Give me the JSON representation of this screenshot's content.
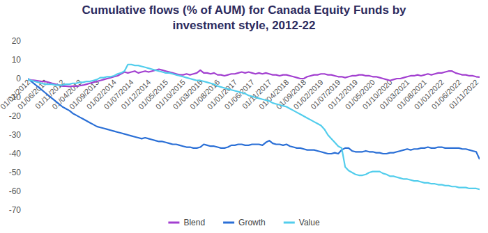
{
  "chart_data": {
    "type": "line",
    "title": "Cumulative flows (% of AUM) for Canada Equity Funds by investment style, 2012-22",
    "categories": [
      "01/01/2012",
      null,
      null,
      null,
      null,
      "01/06/2012",
      null,
      null,
      null,
      null,
      "01/11/2012",
      null,
      null,
      null,
      null,
      "01/04/2013",
      null,
      null,
      null,
      null,
      "01/09/2013",
      null,
      null,
      null,
      null,
      "01/02/2014",
      null,
      null,
      null,
      null,
      "01/07/2014",
      null,
      null,
      null,
      null,
      "01/12/2014",
      null,
      null,
      null,
      null,
      "01/05/2015",
      null,
      null,
      null,
      null,
      "01/10/2015",
      null,
      null,
      null,
      null,
      "01/03/2016",
      null,
      null,
      null,
      null,
      "01/08/2016",
      null,
      null,
      null,
      null,
      "01/01/2017",
      null,
      null,
      null,
      null,
      "01/06/2017",
      null,
      null,
      null,
      null,
      "01/11/2017",
      null,
      null,
      null,
      null,
      "01/04/2018",
      null,
      null,
      null,
      null,
      "01/09/2018",
      null,
      null,
      null,
      null,
      "01/02/2019",
      null,
      null,
      null,
      null,
      "01/07/2019",
      null,
      null,
      null,
      null,
      "01/12/2019",
      null,
      null,
      null,
      null,
      "01/05/2020",
      null,
      null,
      null,
      null,
      "01/10/2020",
      null,
      null,
      null,
      null,
      "01/03/2021",
      null,
      null,
      null,
      null,
      "01/08/2021",
      null,
      null,
      null,
      null,
      "01/01/2022",
      null,
      null,
      null,
      null,
      "01/06/2022",
      null,
      null,
      null,
      null,
      "01/11/2022",
      null
    ],
    "series": [
      {
        "name": "Blend",
        "color": "#a23fd0",
        "values": [
          -0.5,
          -0.8,
          -1,
          -1.2,
          -1.5,
          -1.5,
          -2,
          -2.5,
          -3,
          -3.5,
          -4,
          -4,
          -4.2,
          -4,
          -4,
          -3.8,
          -3.5,
          -3,
          -2.5,
          -2,
          -1.5,
          -1,
          -0.5,
          0,
          0.5,
          1,
          1.5,
          2.5,
          3.5,
          3,
          3.5,
          4,
          3,
          3.5,
          4,
          3.5,
          4,
          4.5,
          5,
          4.5,
          4,
          3.5,
          3,
          2.5,
          2,
          2,
          2.5,
          2,
          2.5,
          3,
          4.5,
          3,
          3,
          2.5,
          3,
          2,
          2,
          1.5,
          2,
          2.5,
          2.5,
          3,
          3.5,
          3,
          3.5,
          3,
          2.5,
          3,
          2.5,
          3,
          2.5,
          2,
          2,
          1.5,
          2,
          2,
          1.5,
          1,
          0.5,
          0,
          0,
          1,
          1.5,
          2,
          2,
          2.5,
          2.5,
          2,
          2,
          1.5,
          1,
          1,
          0.5,
          1,
          1.5,
          1.5,
          2,
          2,
          1.5,
          1.5,
          1,
          1,
          0.5,
          0,
          -0.5,
          -1,
          -0.5,
          0,
          0,
          0.5,
          1,
          1.5,
          1.5,
          2,
          1.5,
          2,
          2.5,
          2,
          2.5,
          3,
          3,
          3.5,
          4,
          4,
          3,
          2.5,
          2,
          2,
          1.5,
          1.5,
          1,
          0.8
        ]
      },
      {
        "name": "Growth",
        "color": "#2a6fd6",
        "values": [
          0,
          -1.5,
          -3,
          -4.5,
          -6,
          -7.5,
          -9,
          -10.5,
          -12,
          -13.5,
          -15,
          -16,
          -17,
          -18.5,
          -19.5,
          -20.5,
          -21.5,
          -22.5,
          -23.5,
          -24.5,
          -25.5,
          -26,
          -26.5,
          -27,
          -27.5,
          -28,
          -28.5,
          -29,
          -29.5,
          -30,
          -30.5,
          -31,
          -31.5,
          -32,
          -31.5,
          -32,
          -32.5,
          -33,
          -33.5,
          -33.5,
          -34,
          -34.5,
          -35,
          -35,
          -35.5,
          -36,
          -36.5,
          -36.5,
          -37,
          -37,
          -36.5,
          -35,
          -35.5,
          -36,
          -36,
          -36.5,
          -37,
          -37,
          -36.5,
          -35.5,
          -35.5,
          -35,
          -35,
          -35.5,
          -35.5,
          -35,
          -35,
          -35,
          -35.5,
          -34,
          -33,
          -34.5,
          -35,
          -35,
          -35.5,
          -35,
          -36,
          -36.5,
          -37,
          -37,
          -37.5,
          -38,
          -38,
          -38,
          -38.5,
          -39,
          -39.5,
          -40,
          -40,
          -39.5,
          -40,
          -38,
          -37,
          -37,
          -38.5,
          -39,
          -39,
          -39,
          -38.5,
          -39,
          -39,
          -39.5,
          -39.5,
          -40,
          -40,
          -39.5,
          -39.5,
          -39,
          -38.5,
          -38,
          -37.5,
          -38,
          -37.5,
          -37.5,
          -37,
          -37,
          -36.5,
          -37,
          -37,
          -36.5,
          -36.5,
          -37,
          -37,
          -37,
          -37,
          -37,
          -37.5,
          -37.5,
          -38,
          -38.5,
          -39,
          -43
        ]
      },
      {
        "name": "Value",
        "color": "#52cdec",
        "values": [
          -0.5,
          -1,
          -1.5,
          -2,
          -2.5,
          -3,
          -3,
          -3,
          -3.5,
          -3.5,
          -3.5,
          -3,
          -3,
          -2.5,
          -2.5,
          -2,
          -2,
          -1.5,
          -1.5,
          -1,
          -0.5,
          0.5,
          0.5,
          1,
          1,
          1.5,
          2.5,
          3,
          4,
          7.5,
          7.5,
          7,
          7,
          6.5,
          6,
          5.5,
          5,
          4.5,
          4,
          3.5,
          3,
          3,
          2.5,
          2,
          1.5,
          1,
          0.5,
          0,
          -0.5,
          -1,
          -1,
          -1.5,
          -2,
          -2.5,
          -3,
          -4,
          -4.5,
          -5,
          -5.5,
          -6,
          -6.5,
          -7,
          -7.5,
          -8,
          -9,
          -9.5,
          -10,
          -10.5,
          -11,
          -11.5,
          -12,
          -13,
          -13.5,
          -14,
          -14.5,
          -15,
          -16,
          -17,
          -18,
          -19,
          -20,
          -21,
          -22,
          -23,
          -24,
          -25,
          -27,
          -30,
          -32,
          -34,
          -36,
          -37,
          -47,
          -49,
          -50,
          -51,
          -51.5,
          -51.5,
          -51,
          -50,
          -49.5,
          -49.5,
          -49.5,
          -50.5,
          -51,
          -52,
          -52,
          -52.5,
          -53,
          -53.5,
          -53.5,
          -54,
          -54.5,
          -54.5,
          -55,
          -55.5,
          -55.5,
          -56,
          -56,
          -56.5,
          -56.5,
          -57,
          -57,
          -57.5,
          -57.5,
          -58,
          -58,
          -58,
          -58.5,
          -58.5,
          -58.5,
          -59
        ]
      }
    ],
    "ylim": [
      -70,
      20
    ],
    "yticks": [
      -70,
      -60,
      -50,
      -40,
      -30,
      -20,
      -10,
      0,
      10,
      20
    ],
    "grid": false,
    "legend": "bottom"
  }
}
